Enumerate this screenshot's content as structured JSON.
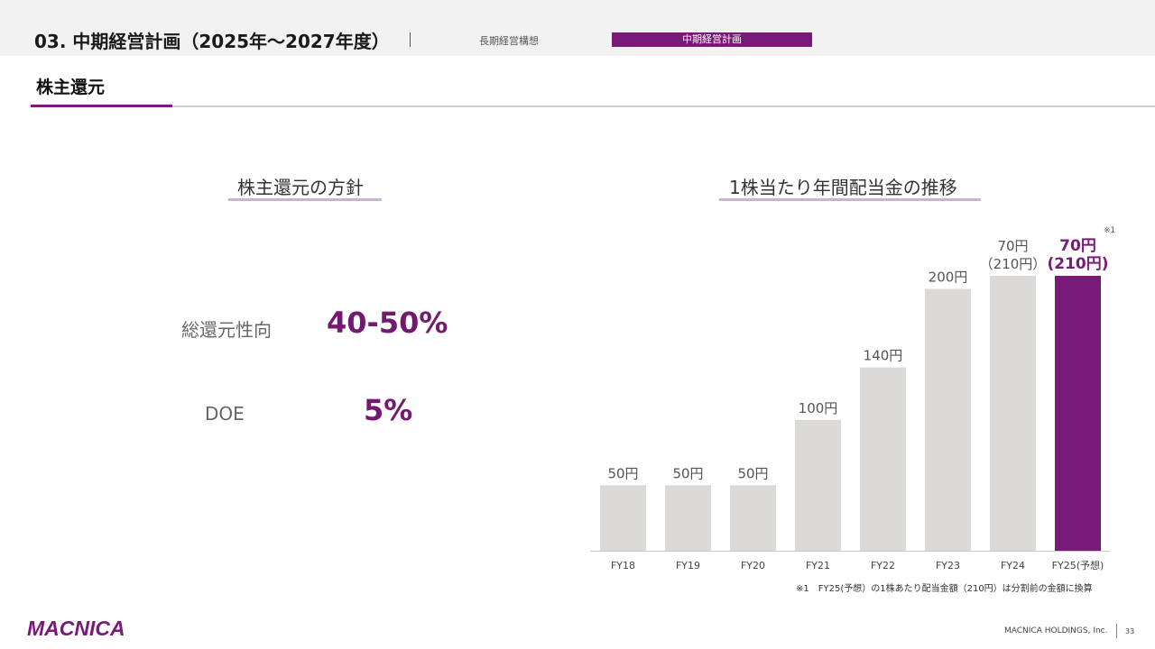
{
  "header": {
    "section_title": "03. 中期経営計画（2025年〜2027年度）",
    "nav_long": "長期経営構想",
    "nav_mid": "中期経営計画",
    "accent_color": "#7a1a78"
  },
  "page": {
    "heading": "株主還元"
  },
  "policy": {
    "title": "株主還元の方針",
    "items": [
      {
        "label": "総還元性向",
        "value": "40-50%"
      },
      {
        "label": "DOE",
        "value": "5%"
      }
    ]
  },
  "dividend": {
    "title": "1株当たり年間配当金の推移"
  },
  "chart_data": {
    "type": "bar",
    "title": "1株当たり年間配当金の推移",
    "categories": [
      "FY18",
      "FY19",
      "FY20",
      "FY21",
      "FY22",
      "FY23",
      "FY24",
      "FY25(予想)"
    ],
    "values": [
      50,
      50,
      50,
      100,
      140,
      200,
      210,
      210
    ],
    "data_labels": [
      "50円",
      "50円",
      "50円",
      "100円",
      "140円",
      "200円",
      "70円\n（210円）",
      "70円\n(210円)"
    ],
    "highlight_index": 7,
    "footnote_marker": "※1",
    "bar_color": "#dcdad8",
    "highlight_color": "#7a1a78",
    "ylim": [
      0,
      210
    ],
    "grid": false
  },
  "footnote": "※1　FY25(予想）の1株あたり配当金額（210円）は分割前の金額に換算",
  "footer": {
    "logo_text": "MACNICA",
    "company": "MACNICA HOLDINGS, Inc.",
    "page_number": "33"
  }
}
